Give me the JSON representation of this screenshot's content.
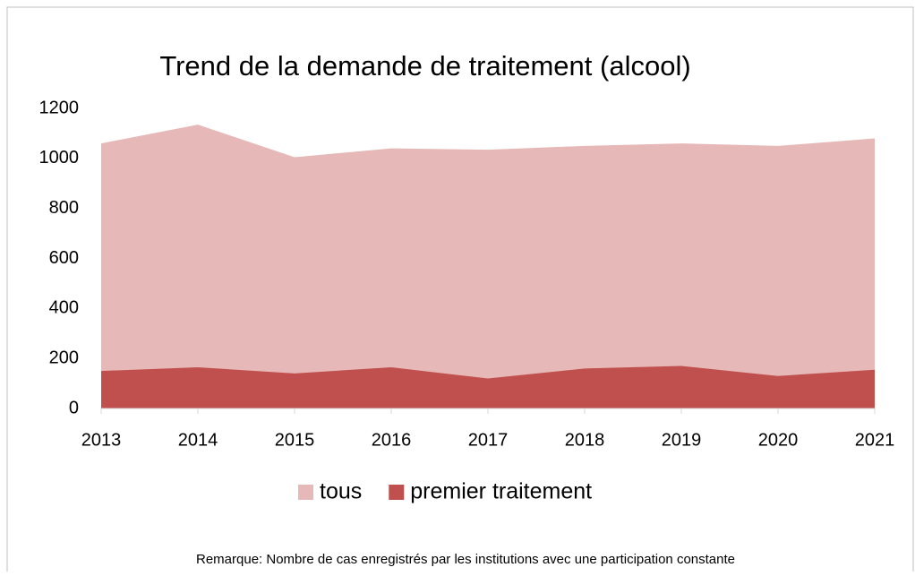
{
  "chart_data": {
    "type": "area",
    "title": "Trend de la demande de traitement (alcool)",
    "note": "Remarque: Nombre de cas enregistrés par les institutions avec une participation constante",
    "categories": [
      "2013",
      "2014",
      "2015",
      "2016",
      "2017",
      "2018",
      "2019",
      "2020",
      "2021"
    ],
    "series": [
      {
        "name": "tous",
        "color": "#e6b8b7",
        "values": [
          1060,
          1135,
          1005,
          1040,
          1035,
          1050,
          1060,
          1050,
          1080
        ]
      },
      {
        "name": "premier traitement",
        "color": "#c0504d",
        "values": [
          150,
          165,
          140,
          165,
          120,
          160,
          170,
          130,
          155
        ]
      }
    ],
    "ylim": [
      0,
      1200
    ],
    "yticks": [
      0,
      200,
      400,
      600,
      800,
      1000,
      1200
    ],
    "grid": false,
    "legend": "bottom"
  }
}
